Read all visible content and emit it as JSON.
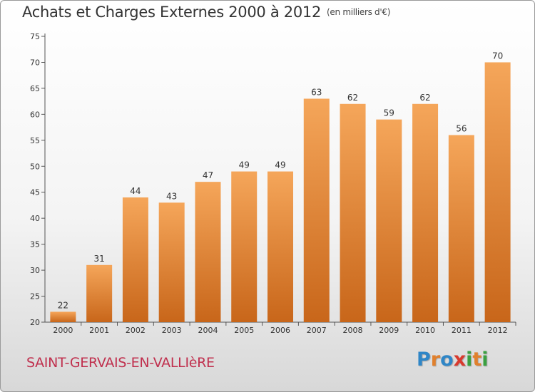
{
  "header": {
    "title": "Achats et Charges Externes 2000 à 2012",
    "subtitle": "(en milliers d'€)"
  },
  "footer": {
    "town": "SAINT-GERVAIS-EN-VALLIèRE",
    "logo": {
      "p": "P",
      "r": "r",
      "o": "o",
      "x": "x",
      "i": "i",
      "t": "t",
      "i2": "i"
    }
  },
  "colors": {
    "bar_light": "#f5a65a",
    "bar_dark": "#c8661a",
    "axis": "#555555"
  },
  "chart_data": {
    "type": "bar",
    "title": "Achats et Charges Externes 2000 à 2012",
    "subtitle": "(en milliers d'€)",
    "categories": [
      "2000",
      "2001",
      "2002",
      "2003",
      "2004",
      "2005",
      "2006",
      "2007",
      "2008",
      "2009",
      "2010",
      "2011",
      "2012"
    ],
    "values": [
      22,
      31,
      44,
      43,
      47,
      49,
      49,
      63,
      62,
      59,
      62,
      56,
      70
    ],
    "ylim": [
      20,
      75
    ],
    "yticks": [
      20,
      25,
      30,
      35,
      40,
      45,
      50,
      55,
      60,
      65,
      70,
      75
    ],
    "grid": false,
    "data_labels": true
  }
}
